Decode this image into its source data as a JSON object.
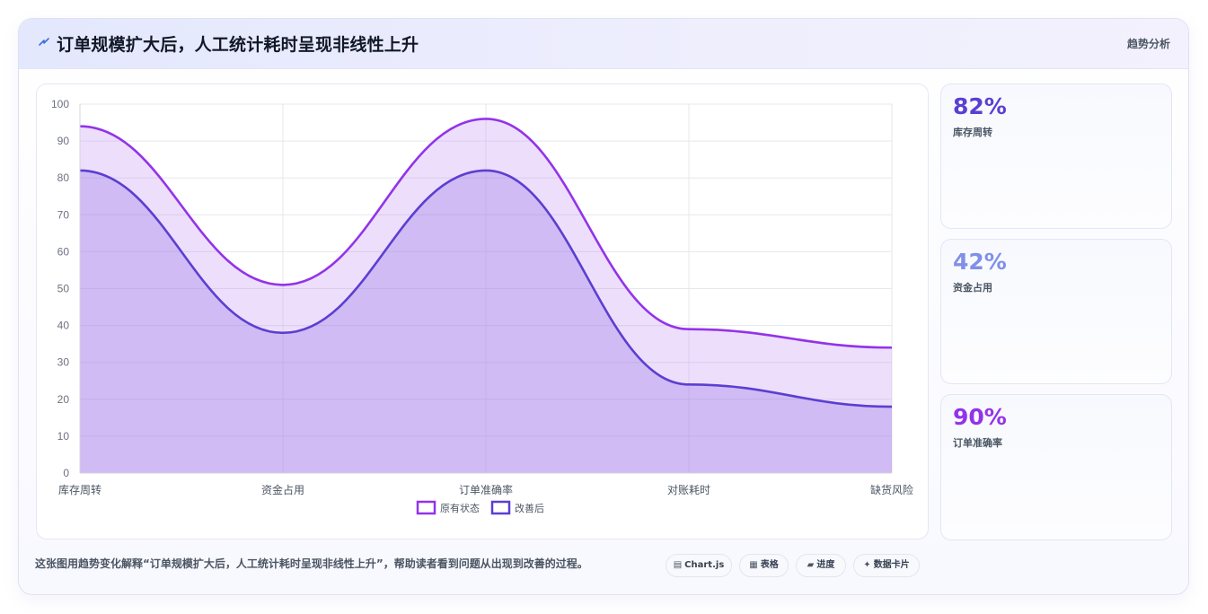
{
  "header": {
    "title": "订单规模扩大后，人工统计耗时呈现非线性上升",
    "tag": "趋势分析"
  },
  "chart_data": {
    "type": "area",
    "categories": [
      "库存周转",
      "资金占用",
      "订单准确率",
      "对账耗时",
      "缺货风险"
    ],
    "series": [
      {
        "name": "原有状态",
        "values": [
          94,
          51,
          96,
          39,
          34
        ],
        "color": "#9333ea"
      },
      {
        "name": "改善后",
        "values": [
          82,
          38,
          82,
          24,
          18
        ],
        "color": "#5b3fd1"
      }
    ],
    "ylim": [
      0,
      100
    ],
    "yticks": [
      0,
      10,
      20,
      30,
      40,
      50,
      60,
      70,
      80,
      90,
      100
    ],
    "grid": true,
    "legend": "bottom"
  },
  "kpis": [
    {
      "value": "82%",
      "label": "库存周转",
      "color": "#5b3fd1"
    },
    {
      "value": "42%",
      "label": "资金占用",
      "color": "#8090e8"
    },
    {
      "value": "90%",
      "label": "订单准确率",
      "color": "#9333ea"
    }
  ],
  "footer": {
    "text": "这张图用趋势变化解释“订单规模扩大后，人工统计耗时呈现非线性上升”，帮助读者看到问题从出现到改善的过程。"
  },
  "chips": [
    {
      "icon": "▤",
      "label": "Chart.js"
    },
    {
      "icon": "▦",
      "label": "表格"
    },
    {
      "icon": "▰",
      "label": "进度"
    },
    {
      "icon": "✦",
      "label": "数据卡片"
    }
  ]
}
